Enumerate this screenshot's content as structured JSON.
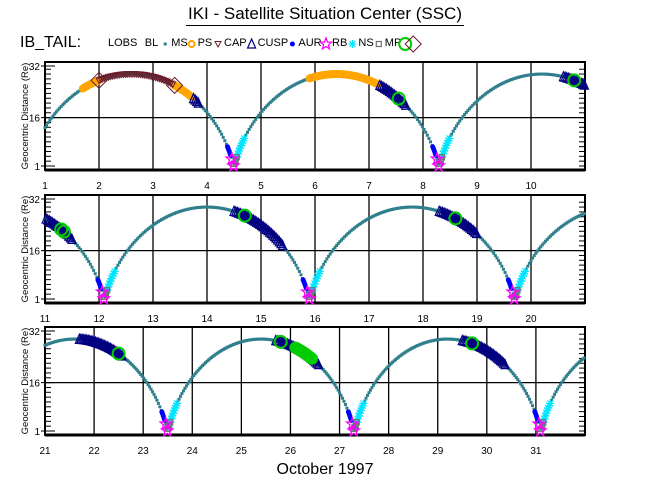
{
  "title": "IKI - Satellite Situation Center (SSC)",
  "satellite": "IB_TAIL:",
  "legend": [
    {
      "label": "LOBS",
      "marker": "none",
      "color": "#000000"
    },
    {
      "label": "BL",
      "marker": "square",
      "color": "#2f7f8c"
    },
    {
      "label": "MS",
      "marker": "sun",
      "color": "#ffa500"
    },
    {
      "label": "PS",
      "marker": "triangle-down",
      "color": "#6b1c2a"
    },
    {
      "label": "CAP",
      "marker": "triangle-up",
      "color": "#000080"
    },
    {
      "label": "CUSP",
      "marker": "dot",
      "color": "#0000ff"
    },
    {
      "label": "AUR",
      "marker": "star",
      "color": "#ff00ff"
    },
    {
      "label": "RB",
      "marker": "asterisk",
      "color": "#00e5ff"
    },
    {
      "label": "NS",
      "marker": "square-open",
      "color": "#707070"
    },
    {
      "label": "MP",
      "marker": "circle",
      "color": "#00cc00"
    },
    {
      "label": "",
      "marker": "diamond",
      "color": "#6b1c2a"
    }
  ],
  "xlabel": "October    1997",
  "chart_data": {
    "type": "scatter",
    "title": "IKI - Satellite Situation Center (SSC)",
    "ylabel": "Geocentric Distance (Re)",
    "xlabel": "October 1997",
    "ylim": [
      1,
      32
    ],
    "yticks": [
      "32",
      "16",
      "1"
    ],
    "grid": true,
    "panels": [
      {
        "xlim": [
          1,
          11
        ],
        "xticks": [
          "1",
          "2",
          "3",
          "4",
          "5",
          "6",
          "7",
          "8",
          "9",
          "10"
        ]
      },
      {
        "xlim": [
          11,
          21
        ],
        "xticks": [
          "11",
          "12",
          "13",
          "14",
          "15",
          "16",
          "17",
          "18",
          "19",
          "20"
        ]
      },
      {
        "xlim": [
          21,
          32
        ],
        "xticks": [
          "21",
          "22",
          "23",
          "24",
          "25",
          "26",
          "27",
          "28",
          "29",
          "30",
          "31"
        ]
      }
    ],
    "orbit": {
      "perigee_re": 1.5,
      "apogee_re": 29.5,
      "period_days": 3.8,
      "first_perigee_day": 0.7
    },
    "perigee_days": [
      4.5,
      8.3,
      12.1,
      15.9,
      19.7,
      23.5,
      27.3,
      31.1
    ],
    "regions": [
      {
        "type": "MS",
        "intervals": [
          [
            1.7,
            2.0
          ],
          [
            3.4,
            3.75
          ],
          [
            5.9,
            7.2
          ]
        ]
      },
      {
        "type": "PS",
        "intervals": [
          [
            2.0,
            3.4
          ]
        ]
      },
      {
        "type": "CAP",
        "intervals": [
          [
            3.75,
            3.85
          ],
          [
            7.2,
            7.7
          ],
          [
            10.6,
            11.5
          ],
          [
            14.5,
            15.4
          ],
          [
            18.3,
            19.0
          ],
          [
            21.7,
            22.6
          ],
          [
            25.7,
            26.6
          ],
          [
            29.5,
            30.4
          ]
        ]
      },
      {
        "type": "MP_CIRCLE",
        "days": [
          7.55,
          10.8,
          11.3,
          11.35,
          14.7,
          18.6,
          22.5,
          25.8,
          29.7
        ]
      },
      {
        "type": "MP_BLOB",
        "intervals": [
          [
            26.1,
            26.45
          ]
        ]
      },
      {
        "type": "MP_DIAMOND",
        "days": [
          2.0,
          3.4
        ]
      }
    ]
  }
}
